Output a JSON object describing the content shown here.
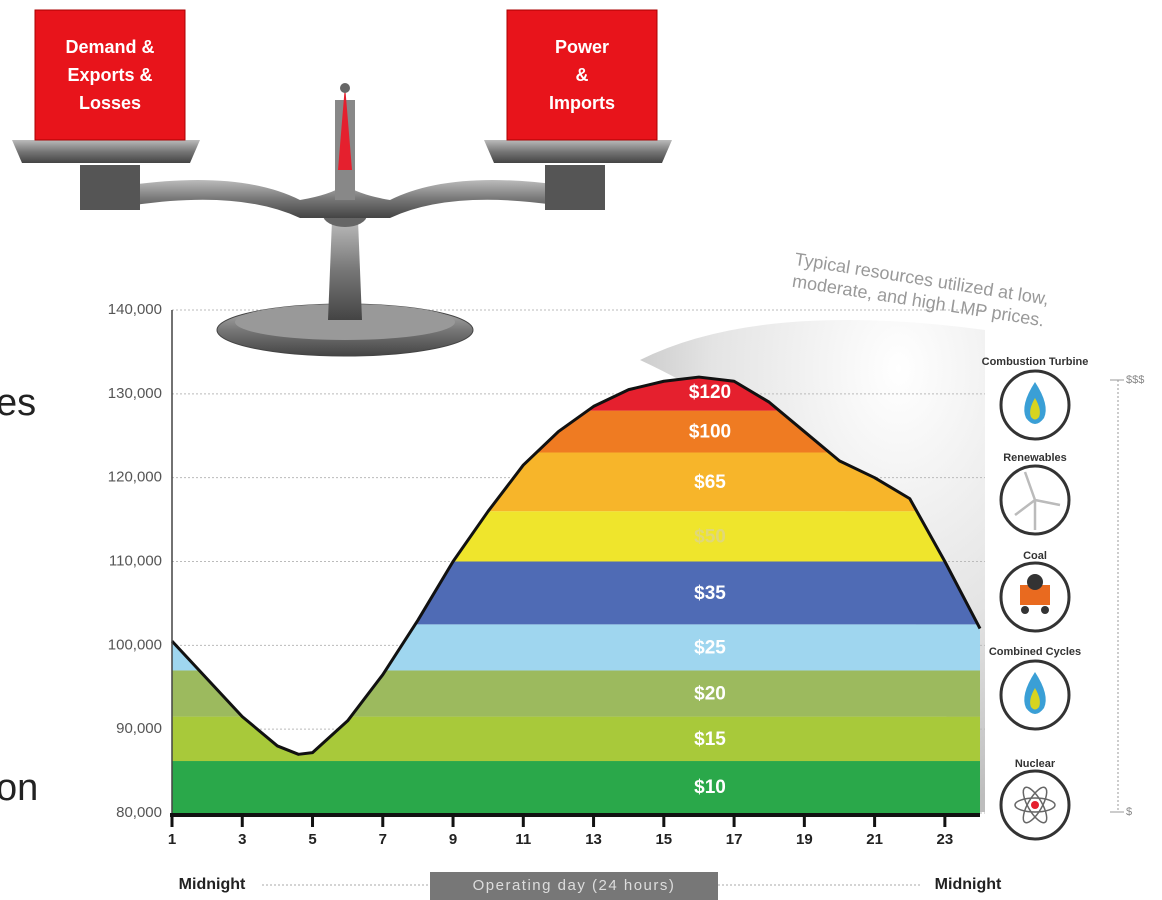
{
  "chart_data": {
    "type": "area",
    "fragments": [
      "es",
      "on"
    ],
    "scale_left": [
      "Demand &",
      "Exports &",
      "Losses"
    ],
    "scale_right": [
      "Power",
      "&",
      "Imports"
    ],
    "annotation_lines": [
      "Typical resources utilized at low,",
      "moderate, and high LMP prices."
    ],
    "resources": [
      "Combustion Turbine",
      "Renewables",
      "Coal",
      "Combined Cycles",
      "Nuclear"
    ],
    "price_scale": [
      "$$$",
      "$"
    ],
    "x_start_label": "Midnight",
    "x_end_label": "Midnight",
    "x_label": "Operating day (24 hours)",
    "x": [
      1,
      2,
      3,
      4,
      4.6,
      5,
      6,
      7,
      8,
      9,
      10,
      11,
      12,
      13,
      14,
      15,
      16,
      17,
      18,
      19,
      20,
      21,
      22,
      23,
      24
    ],
    "values": [
      100500,
      96000,
      91500,
      88000,
      87000,
      87200,
      91000,
      96500,
      103000,
      110000,
      116000,
      121500,
      125500,
      128500,
      130500,
      131500,
      132000,
      131500,
      129000,
      125500,
      122000,
      120000,
      117500,
      110000,
      102000
    ],
    "line_color": "#111111",
    "bands": [
      {
        "label": "$10",
        "low": 80000,
        "high": 86200,
        "color": "#2aa84a",
        "label_color": "#ffffff"
      },
      {
        "label": "$15",
        "low": 86200,
        "high": 91500,
        "color": "#a8c93a",
        "label_color": "#ffffff"
      },
      {
        "label": "$20",
        "low": 91500,
        "high": 97000,
        "color": "#9cba5e",
        "label_color": "#ffffff"
      },
      {
        "label": "$25",
        "low": 97000,
        "high": 102500,
        "color": "#9fd6ef",
        "label_color": "#ffffff"
      },
      {
        "label": "$35",
        "low": 102500,
        "high": 110000,
        "color": "#4f6bb5",
        "label_color": "#ffffff"
      },
      {
        "label": "$50",
        "low": 110000,
        "high": 116000,
        "color": "#efe52c",
        "label_color": "#e0d878"
      },
      {
        "label": "$65",
        "low": 116000,
        "high": 123000,
        "color": "#f7b52a",
        "label_color": "#ffffff"
      },
      {
        "label": "$100",
        "low": 123000,
        "high": 128000,
        "color": "#ef7b22",
        "label_color": "#ffffff"
      },
      {
        "label": "$120",
        "low": 128000,
        "high": 132500,
        "color": "#e5202e",
        "label_color": "#ffffff"
      }
    ],
    "xlim": [
      1,
      24
    ],
    "xticks": [
      1,
      3,
      5,
      7,
      9,
      11,
      13,
      15,
      17,
      19,
      21,
      23
    ],
    "ylim": [
      80000,
      140000
    ],
    "yticks": [
      {
        "value": 140000,
        "label": "140,000"
      },
      {
        "value": 130000,
        "label": "130,000"
      },
      {
        "value": 120000,
        "label": "120,000"
      },
      {
        "value": 110000,
        "label": "110,000"
      },
      {
        "value": 100000,
        "label": "100,000"
      },
      {
        "value": 90000,
        "label": "90,000"
      },
      {
        "value": 80000,
        "label": "80,000"
      }
    ],
    "grid": true
  }
}
